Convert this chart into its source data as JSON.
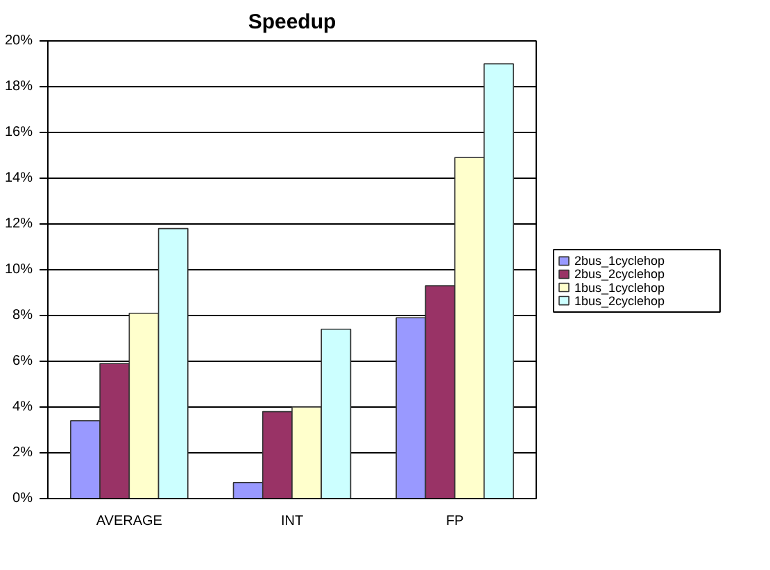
{
  "chart_data": {
    "type": "bar",
    "title": "Speedup",
    "categories": [
      "AVERAGE",
      "INT",
      "FP"
    ],
    "series": [
      {
        "name": "2bus_1cyclehop",
        "color": "#9999ff",
        "values": [
          3.4,
          0.7,
          7.9
        ]
      },
      {
        "name": "2bus_2cyclehop",
        "color": "#993366",
        "values": [
          5.9,
          3.8,
          9.3
        ]
      },
      {
        "name": "1bus_1cyclehop",
        "color": "#ffffcc",
        "values": [
          8.1,
          4.0,
          14.9
        ]
      },
      {
        "name": "1bus_2cyclehop",
        "color": "#ccffff",
        "values": [
          11.8,
          7.4,
          19.0
        ]
      }
    ],
    "ylim": [
      0,
      20
    ],
    "yticks": [
      {
        "value": 0,
        "label": "0%"
      },
      {
        "value": 2,
        "label": "2%"
      },
      {
        "value": 4,
        "label": "4%"
      },
      {
        "value": 6,
        "label": "6%"
      },
      {
        "value": 8,
        "label": "8%"
      },
      {
        "value": 10,
        "label": "10%"
      },
      {
        "value": 12,
        "label": "12%"
      },
      {
        "value": 14,
        "label": "14%"
      },
      {
        "value": 16,
        "label": "16%"
      },
      {
        "value": 18,
        "label": "18%"
      },
      {
        "value": 20,
        "label": "20%"
      }
    ],
    "grid": "y",
    "legend": "right"
  }
}
